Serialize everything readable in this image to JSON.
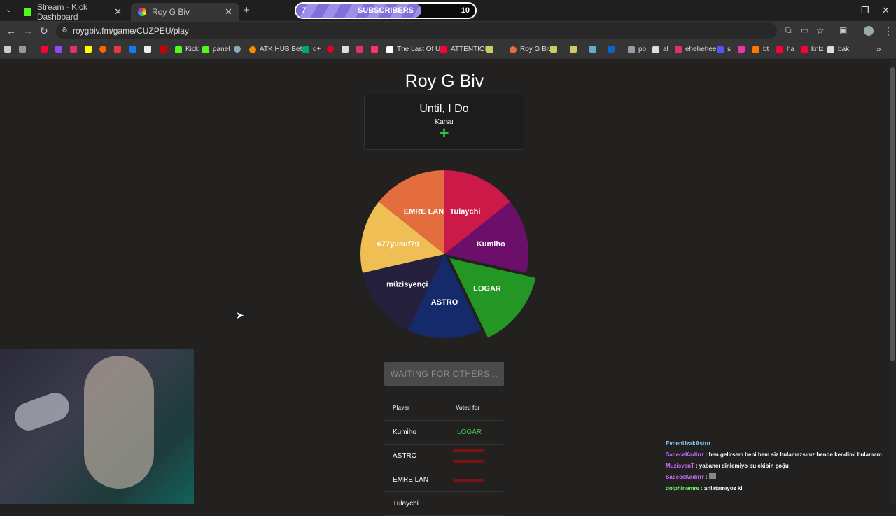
{
  "tabs": [
    {
      "label": "Stream - Kick Dashboard",
      "active": false
    },
    {
      "label": "Roy G Biv",
      "active": true
    }
  ],
  "subscribers": {
    "label": "SUBSCRIBERS",
    "current": "7",
    "goal": "10",
    "progress": 0.7
  },
  "address": {
    "url": "roygbiv.fm/game/CUZPEU/play"
  },
  "bookmarks": [
    "Kick",
    "panel",
    "ATK HUB Beta",
    "d+",
    "The Last Of Us",
    "ATTENTION",
    "Roy G Biv",
    "pb",
    "al",
    "ehehehee",
    "s",
    "bt",
    "ha",
    "knlz",
    "bak"
  ],
  "game": {
    "title": "Roy G Biv",
    "song": {
      "title": "Until, I Do",
      "artist": "Karsu",
      "add_icon": "plus-icon"
    },
    "wheel": [
      {
        "label": "Tulaychi",
        "color": "#cc1a48"
      },
      {
        "label": "Kumiho",
        "color": "#6b0f6b"
      },
      {
        "label": "LOGAR",
        "color": "#239623",
        "highlighted": true
      },
      {
        "label": "ASTRO",
        "color": "#152a6b"
      },
      {
        "label": "müzisyençi",
        "color": "#25203d"
      },
      {
        "label": "677yusuf79",
        "color": "#efbe55"
      },
      {
        "label": "EMRE LAN",
        "color": "#e36d3c"
      }
    ],
    "wait_button": "WAITING FOR OTHERS...",
    "votes": {
      "headers": {
        "player": "Player",
        "voted": "Voted for"
      },
      "rows": [
        {
          "player": "Kumiho",
          "voted": "LOGAR",
          "color": "#3fcf4f"
        },
        {
          "player": "ASTRO",
          "voted": "",
          "color": "#b01818"
        },
        {
          "player": "EMRE LAN",
          "voted": "",
          "color": "#b01818"
        },
        {
          "player": "Tulaychi",
          "voted": "",
          "color": "#b01818"
        }
      ]
    }
  },
  "chat": [
    {
      "user": "EvdenUzakAstro",
      "color": "#8fd0ff",
      "text": ""
    },
    {
      "user": "SadeceKadirrr",
      "color": "#c86bff",
      "text": "ben gelirsem beni hem siz bulamazsınız bende kendimi bulamam"
    },
    {
      "user": "MuzisyenT",
      "color": "#c86bff",
      "text": "yabancı dinlemiyo bu ekibin çoğu"
    },
    {
      "user": "SadeceKadirrr",
      "color": "#c86bff",
      "text": ""
    },
    {
      "user": "dolphinemre",
      "color": "#6aff6a",
      "text": "anlatamıyoz ki"
    }
  ]
}
